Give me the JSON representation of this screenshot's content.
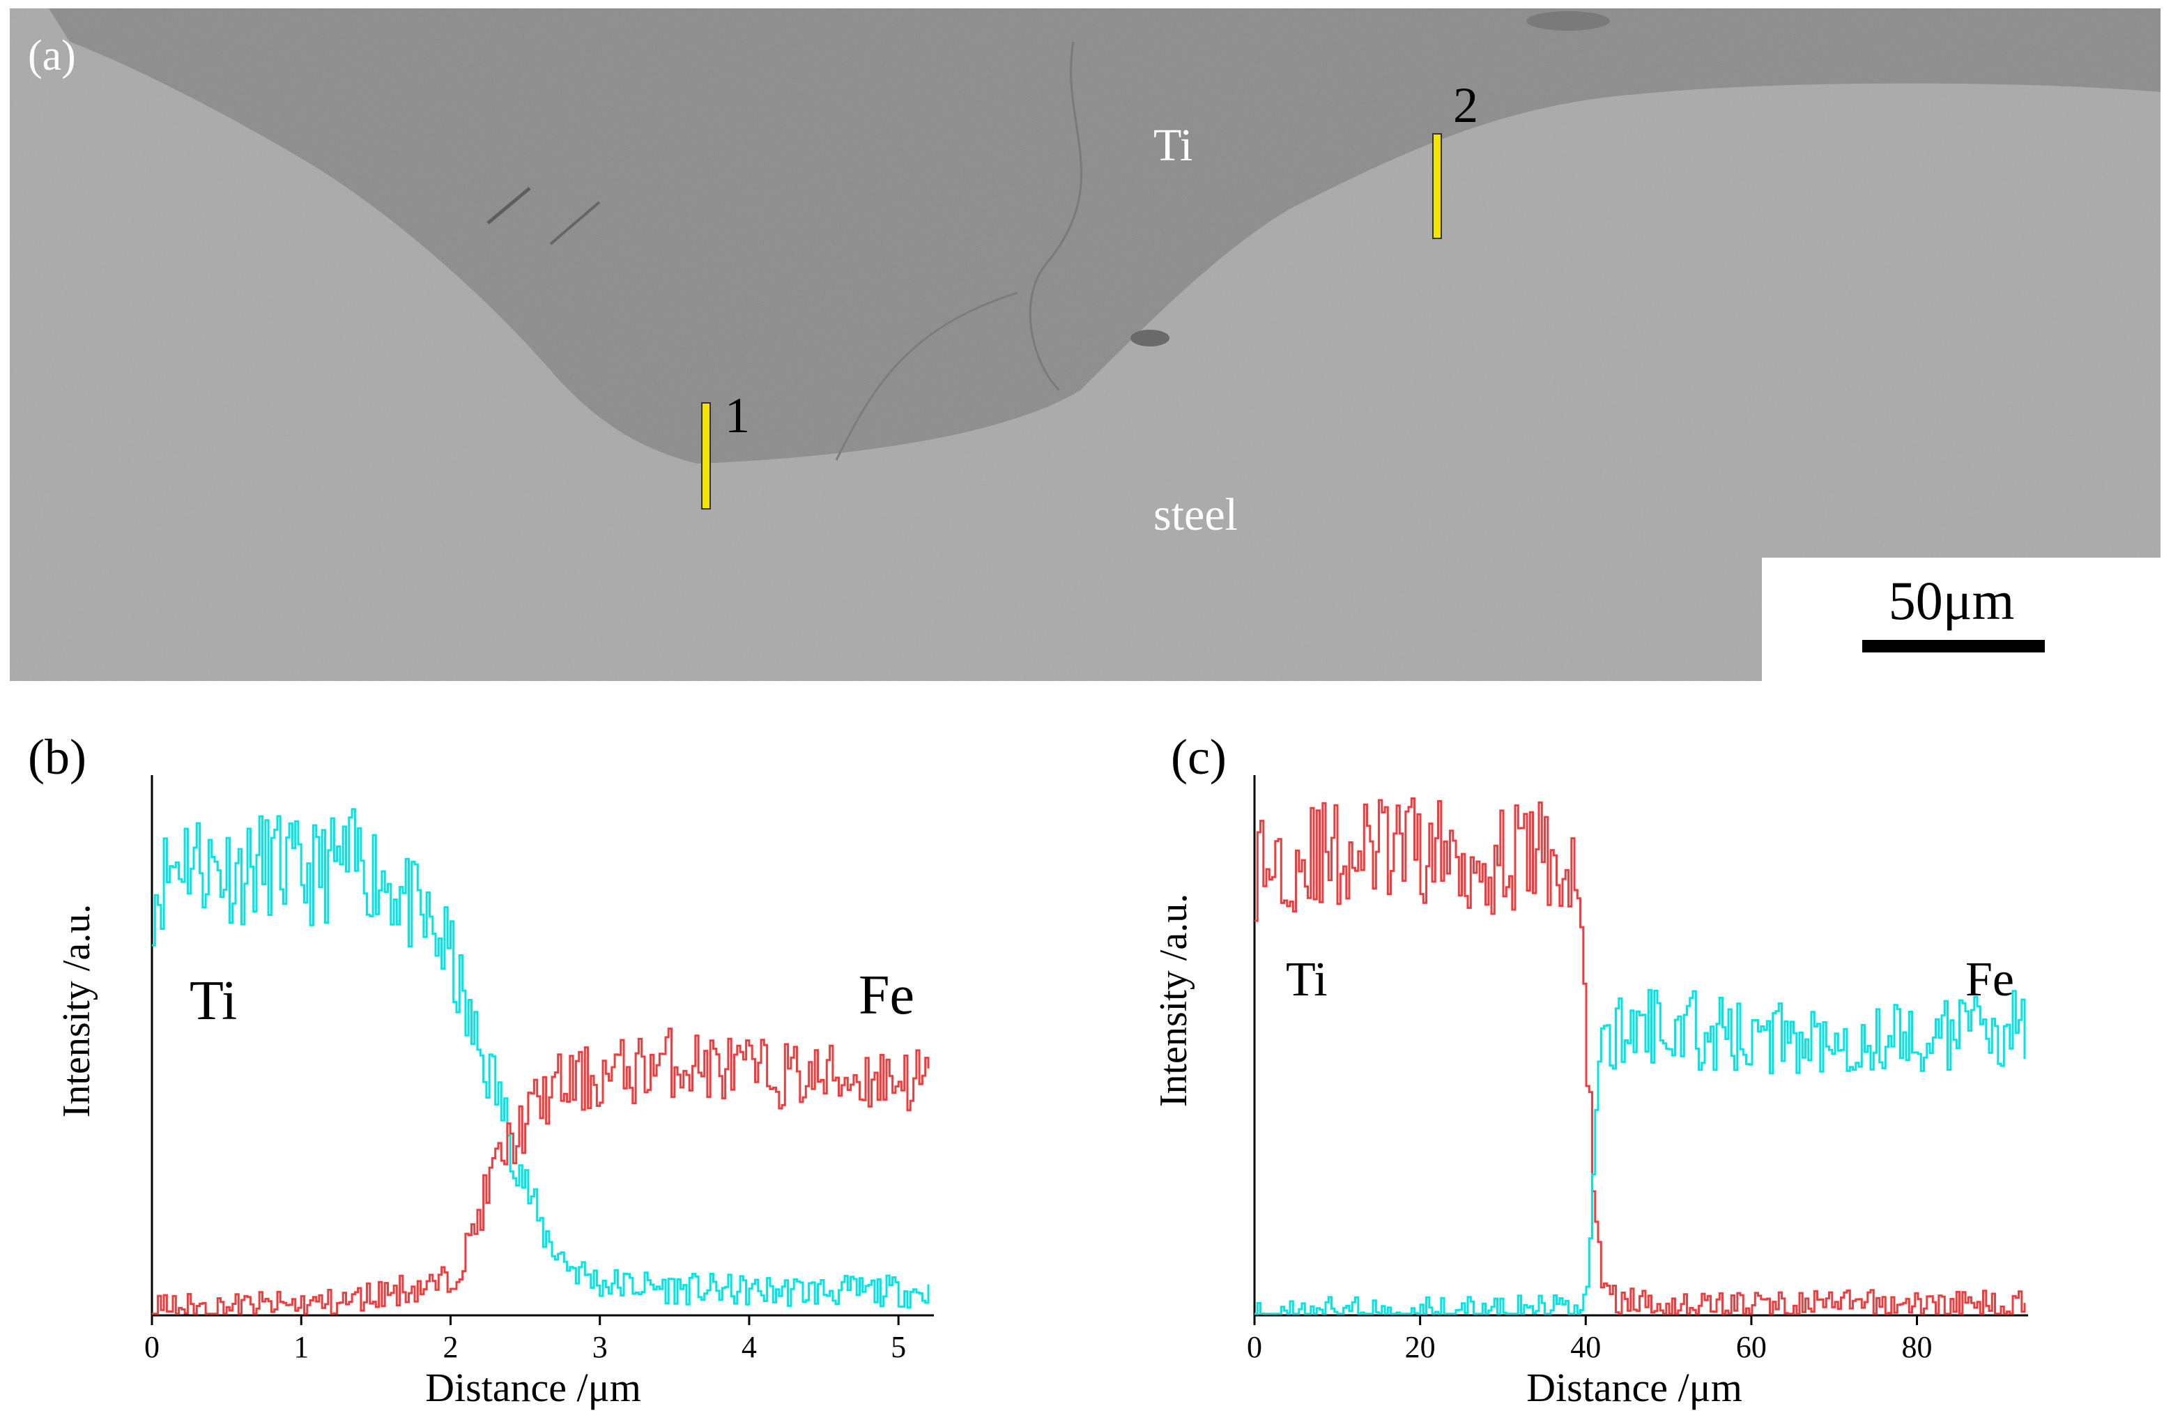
{
  "panel_a": {
    "label": "(a)",
    "region_labels": {
      "ti": "Ti",
      "steel": "steel"
    },
    "line_markers": [
      "1",
      "2"
    ],
    "scale_bar_label": "50μm"
  },
  "colors": {
    "ti_series": "#00e5e5",
    "fe_series": "#f03c3c",
    "marker": "#f5e400"
  },
  "chart_data": [
    {
      "type": "line",
      "panel_label": "(b)",
      "xlabel": "Distance /μm",
      "ylabel": "Intensity /a.u.",
      "xlim": [
        0,
        5.2
      ],
      "ylim": [
        0,
        1
      ],
      "xticks": [
        0,
        1,
        2,
        3,
        4,
        5
      ],
      "annotations": [
        "Ti",
        "Fe"
      ],
      "series": [
        {
          "name": "Ti",
          "color": "#00e5e5",
          "x": [
            0,
            0.2,
            0.4,
            0.6,
            0.8,
            1.0,
            1.2,
            1.4,
            1.6,
            1.8,
            1.9,
            2.0,
            2.1,
            2.2,
            2.3,
            2.4,
            2.5,
            2.6,
            2.7,
            2.8,
            3.0,
            3.5,
            4.0,
            4.5,
            5.0,
            5.2
          ],
          "y": [
            0.78,
            0.86,
            0.83,
            0.82,
            0.84,
            0.81,
            0.83,
            0.84,
            0.8,
            0.73,
            0.7,
            0.66,
            0.55,
            0.48,
            0.42,
            0.32,
            0.24,
            0.16,
            0.12,
            0.09,
            0.06,
            0.05,
            0.045,
            0.045,
            0.045,
            0.04
          ]
        },
        {
          "name": "Fe",
          "color": "#f03c3c",
          "x": [
            0,
            0.5,
            1.0,
            1.3,
            1.5,
            1.7,
            1.9,
            2.0,
            2.1,
            2.2,
            2.3,
            2.4,
            2.5,
            2.6,
            2.7,
            2.8,
            3.0,
            3.3,
            3.5,
            4.0,
            4.5,
            5.0,
            5.2
          ],
          "y": [
            0.015,
            0.015,
            0.02,
            0.025,
            0.04,
            0.05,
            0.055,
            0.07,
            0.12,
            0.2,
            0.28,
            0.32,
            0.36,
            0.4,
            0.42,
            0.43,
            0.44,
            0.46,
            0.47,
            0.45,
            0.44,
            0.44,
            0.43
          ]
        }
      ]
    },
    {
      "type": "line",
      "panel_label": "(c)",
      "xlabel": "Distance /μm",
      "ylabel": "Intensity /a.u.",
      "xlim": [
        0,
        93
      ],
      "ylim": [
        0,
        1
      ],
      "xticks": [
        0,
        20,
        40,
        60,
        80
      ],
      "annotations": [
        "Ti",
        "Fe"
      ],
      "series": [
        {
          "name": "Ti",
          "color": "#f03c3c",
          "x": [
            0,
            5,
            10,
            15,
            20,
            25,
            30,
            35,
            37,
            38,
            39,
            40,
            41,
            42,
            43,
            45,
            50,
            60,
            70,
            80,
            93
          ],
          "y": [
            0.83,
            0.85,
            0.85,
            0.86,
            0.86,
            0.85,
            0.84,
            0.86,
            0.82,
            0.8,
            0.78,
            0.5,
            0.2,
            0.05,
            0.03,
            0.025,
            0.02,
            0.02,
            0.02,
            0.02,
            0.02
          ]
        },
        {
          "name": "Fe",
          "color": "#00e5e5",
          "x": [
            0,
            10,
            20,
            30,
            35,
            38,
            40,
            40.5,
            41,
            41.5,
            42,
            43,
            45,
            50,
            55,
            60,
            70,
            80,
            93
          ],
          "y": [
            0.01,
            0.01,
            0.01,
            0.01,
            0.012,
            0.015,
            0.03,
            0.15,
            0.35,
            0.45,
            0.49,
            0.51,
            0.53,
            0.54,
            0.52,
            0.51,
            0.52,
            0.51,
            0.54
          ]
        }
      ]
    }
  ]
}
